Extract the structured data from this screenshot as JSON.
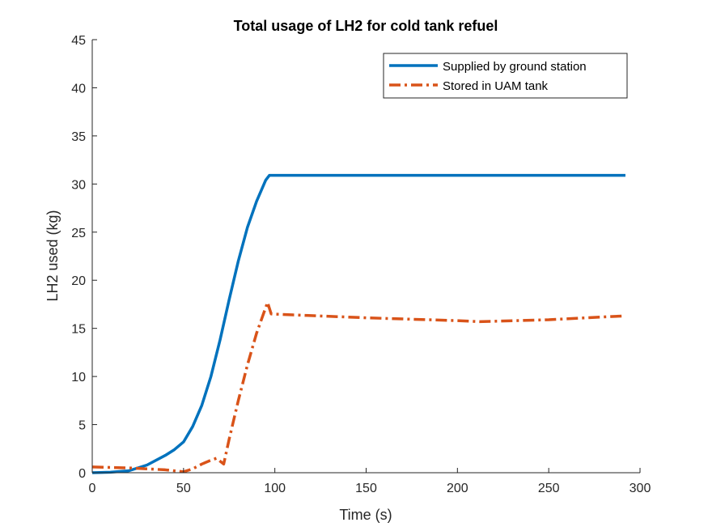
{
  "chart_data": {
    "type": "line",
    "title": "Total usage of LH2 for cold tank refuel",
    "xlabel": "Time (s)",
    "ylabel": "LH2 used (kg)",
    "xlim": [
      0,
      300
    ],
    "ylim": [
      0,
      45
    ],
    "xticks": [
      "0",
      "50",
      "100",
      "150",
      "200",
      "250",
      "300"
    ],
    "yticks": [
      "0",
      "5",
      "10",
      "15",
      "20",
      "25",
      "30",
      "35",
      "40",
      "45"
    ],
    "grid": false,
    "legend_position": "top-right",
    "series": [
      {
        "name": "Supplied by ground station",
        "color": "#0072BD",
        "style": "solid",
        "x": [
          0,
          10,
          20,
          30,
          40,
          45,
          50,
          55,
          60,
          65,
          70,
          75,
          80,
          85,
          90,
          95,
          97,
          100,
          150,
          200,
          250,
          292
        ],
        "y": [
          0,
          0.05,
          0.2,
          0.8,
          1.8,
          2.4,
          3.2,
          4.8,
          7.0,
          10.0,
          13.8,
          18.0,
          22.0,
          25.5,
          28.2,
          30.4,
          30.9,
          30.9,
          30.9,
          30.9,
          30.9,
          30.9
        ]
      },
      {
        "name": "Stored in UAM tank",
        "color": "#D95319",
        "style": "dashdot",
        "x": [
          0,
          10,
          20,
          30,
          40,
          50,
          55,
          60,
          65,
          68,
          72,
          75,
          80,
          85,
          90,
          96,
          98,
          110,
          150,
          200,
          212,
          250,
          292
        ],
        "y": [
          0.6,
          0.55,
          0.5,
          0.4,
          0.3,
          0.1,
          0.4,
          0.9,
          1.3,
          1.5,
          0.9,
          3.5,
          7.5,
          11.2,
          14.5,
          17.7,
          16.5,
          16.4,
          16.1,
          15.8,
          15.7,
          15.9,
          16.3
        ]
      }
    ]
  }
}
